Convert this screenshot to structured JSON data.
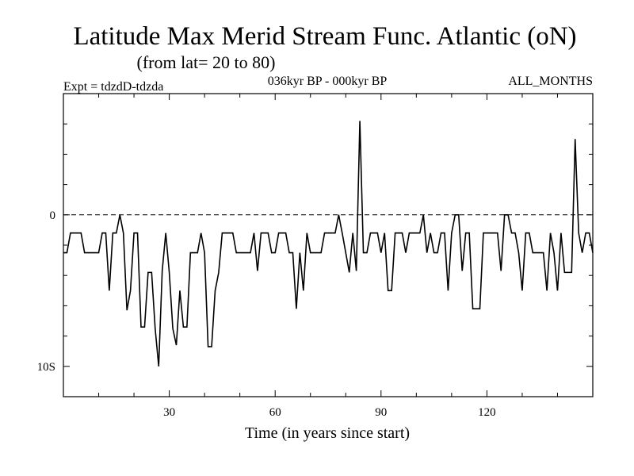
{
  "chart_data": {
    "type": "line",
    "title": "Latitude Max Merid Stream Func. Atlantic (oN)",
    "subtitle": "(from lat= 20 to 80)",
    "header_left": "Expt = tdzdD-tdzda",
    "header_center": "036kyr BP - 000kyr BP",
    "header_right": "ALL_MONTHS",
    "xlabel": "Time (in years since start)",
    "ylabel": "",
    "xlim": [
      0,
      150
    ],
    "ylim": [
      -12,
      8
    ],
    "x_ticks": [
      30,
      60,
      90,
      120
    ],
    "x_tick_labels": [
      "30",
      "60",
      "90",
      "120"
    ],
    "y_ticks": [
      0,
      -10
    ],
    "y_tick_labels": [
      "0",
      "10S"
    ],
    "reference_line": 0,
    "series": [
      {
        "name": "tdzdD-tdzda",
        "x": [
          0,
          1,
          2,
          3,
          4,
          5,
          6,
          7,
          8,
          9,
          10,
          11,
          12,
          13,
          14,
          15,
          16,
          17,
          18,
          19,
          20,
          21,
          22,
          23,
          24,
          25,
          26,
          27,
          28,
          29,
          30,
          31,
          32,
          33,
          34,
          35,
          36,
          37,
          38,
          39,
          40,
          41,
          42,
          43,
          44,
          45,
          46,
          47,
          48,
          49,
          50,
          51,
          52,
          53,
          54,
          55,
          56,
          57,
          58,
          59,
          60,
          61,
          62,
          63,
          64,
          65,
          66,
          67,
          68,
          69,
          70,
          71,
          72,
          73,
          74,
          75,
          76,
          77,
          78,
          79,
          80,
          81,
          82,
          83,
          84,
          85,
          86,
          87,
          88,
          89,
          90,
          91,
          92,
          93,
          94,
          95,
          96,
          97,
          98,
          99,
          100,
          101,
          102,
          103,
          104,
          105,
          106,
          107,
          108,
          109,
          110,
          111,
          112,
          113,
          114,
          115,
          116,
          117,
          118,
          119,
          120,
          121,
          122,
          123,
          124,
          125,
          126,
          127,
          128,
          129,
          130,
          131,
          132,
          133,
          134,
          135,
          136,
          137,
          138,
          139,
          140,
          141,
          142,
          143,
          144,
          145,
          146,
          147,
          148,
          149,
          150
        ],
        "values": [
          -2.5,
          -2.5,
          -1.2,
          -1.2,
          -1.2,
          -1.2,
          -2.5,
          -2.5,
          -2.5,
          -2.5,
          -2.5,
          -1.2,
          -1.2,
          -5,
          -1.2,
          -1.2,
          0,
          -1.2,
          -6.3,
          -5,
          -1.2,
          -1.2,
          -7.4,
          -7.4,
          -3.8,
          -3.8,
          -7.5,
          -10,
          -3.7,
          -1.2,
          -3.8,
          -7.5,
          -8.6,
          -5,
          -7.4,
          -7.4,
          -2.5,
          -2.5,
          -2.5,
          -1.2,
          -2.5,
          -8.7,
          -8.7,
          -5,
          -3.8,
          -1.2,
          -1.2,
          -1.2,
          -1.2,
          -2.5,
          -2.5,
          -2.5,
          -2.5,
          -2.5,
          -1.2,
          -3.7,
          -1.2,
          -1.2,
          -1.2,
          -2.5,
          -2.5,
          -1.2,
          -1.2,
          -1.2,
          -2.5,
          -2.5,
          -6.2,
          -2.5,
          -5,
          -1.2,
          -2.5,
          -2.5,
          -2.5,
          -2.5,
          -1.2,
          -1.2,
          -1.2,
          -1.2,
          0,
          -1.2,
          -2.5,
          -3.8,
          -1.2,
          -3.7,
          6.2,
          -2.5,
          -2.5,
          -1.2,
          -1.2,
          -1.2,
          -2.5,
          -1.2,
          -5,
          -5,
          -1.2,
          -1.2,
          -1.2,
          -2.5,
          -1.2,
          -1.2,
          -1.2,
          -1.2,
          0,
          -2.5,
          -1.2,
          -2.5,
          -2.5,
          -1.2,
          -1.2,
          -5,
          -1.2,
          0,
          0,
          -3.7,
          -1.2,
          -1.2,
          -6.2,
          -6.2,
          -6.2,
          -1.2,
          -1.2,
          -1.2,
          -1.2,
          -1.2,
          -3.7,
          0,
          0,
          -1.2,
          -1.2,
          -2.5,
          -5,
          -1.2,
          -1.2,
          -2.5,
          -2.5,
          -2.5,
          -2.5,
          -5,
          -1.2,
          -2.5,
          -5,
          -1.2,
          -3.8,
          -3.8,
          -3.8,
          5,
          -1.2,
          -2.5,
          -1.2,
          -1.2,
          -2.5
        ]
      }
    ]
  }
}
